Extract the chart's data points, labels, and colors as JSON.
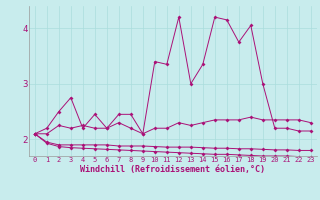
{
  "bg_color": "#c8eced",
  "line_color": "#aa1177",
  "grid_color": "#aadddd",
  "xlabel": "Windchill (Refroidissement éolien,°C)",
  "xlabel_color": "#aa1177",
  "tick_color": "#aa1177",
  "x_ticks": [
    0,
    1,
    2,
    3,
    4,
    5,
    6,
    7,
    8,
    9,
    10,
    11,
    12,
    13,
    14,
    15,
    16,
    17,
    18,
    19,
    20,
    21,
    22,
    23
  ],
  "y_ticks": [
    2,
    3,
    4
  ],
  "xlim": [
    -0.5,
    23.5
  ],
  "ylim": [
    1.7,
    4.4
  ],
  "series": [
    [
      2.1,
      2.2,
      2.5,
      2.75,
      2.2,
      2.45,
      2.2,
      2.45,
      2.45,
      2.1,
      3.4,
      3.35,
      4.2,
      3.0,
      3.35,
      4.2,
      4.15,
      3.75,
      4.05,
      3.0,
      2.2,
      2.2,
      2.15,
      2.15
    ],
    [
      2.1,
      2.1,
      2.25,
      2.2,
      2.25,
      2.2,
      2.2,
      2.3,
      2.2,
      2.1,
      2.2,
      2.2,
      2.3,
      2.25,
      2.3,
      2.35,
      2.35,
      2.35,
      2.4,
      2.35,
      2.35,
      2.35,
      2.35,
      2.3
    ],
    [
      2.1,
      1.95,
      1.9,
      1.9,
      1.9,
      1.9,
      1.9,
      1.88,
      1.88,
      1.88,
      1.87,
      1.86,
      1.86,
      1.86,
      1.85,
      1.84,
      1.84,
      1.83,
      1.83,
      1.82,
      1.81,
      1.81,
      1.8,
      1.8
    ],
    [
      2.1,
      1.93,
      1.87,
      1.85,
      1.84,
      1.83,
      1.82,
      1.81,
      1.8,
      1.79,
      1.78,
      1.77,
      1.76,
      1.75,
      1.74,
      1.73,
      1.73,
      1.72,
      1.71,
      1.7,
      1.7,
      1.7,
      1.69,
      1.69
    ]
  ]
}
